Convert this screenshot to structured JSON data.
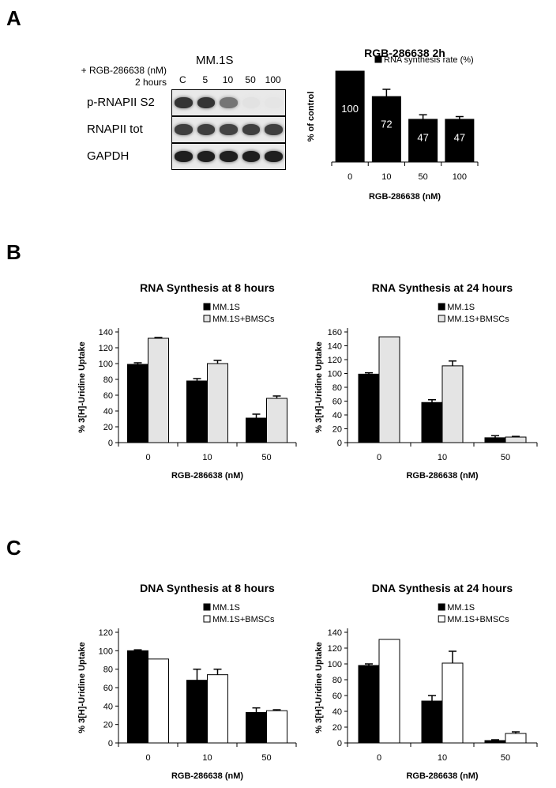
{
  "panels": {
    "a": "A",
    "b": "B",
    "c": "C"
  },
  "blot": {
    "cell_line": "MM.1S",
    "treatment_label": "+ RGB-286638 (nM)",
    "time_label": "2 hours",
    "lanes": [
      "C",
      "5",
      "10",
      "50",
      "100"
    ],
    "rows": [
      {
        "label": "p-RNAPII S2",
        "intensity": [
          0.85,
          0.85,
          0.55,
          0.04,
          0.03
        ]
      },
      {
        "label": "RNAPII tot",
        "intensity": [
          0.8,
          0.8,
          0.78,
          0.8,
          0.8
        ]
      },
      {
        "label": "GAPDH",
        "intensity": [
          0.95,
          0.95,
          0.95,
          0.95,
          0.95
        ]
      }
    ]
  },
  "colors": {
    "dark": "#000000",
    "light_gray": "#e4e4e4",
    "white": "#ffffff"
  },
  "chart_data": [
    {
      "id": "a2",
      "type": "bar",
      "title": "RGB-286638 2h",
      "xlabel": "RGB-286638 (nM)",
      "ylabel": "% of control",
      "categories": [
        "0",
        "10",
        "50",
        "100"
      ],
      "series": [
        {
          "name": "RNA synthesis rate (%)",
          "color": "#000000",
          "values": [
            100,
            72,
            47,
            47
          ],
          "errors": [
            0,
            8,
            5,
            3
          ]
        }
      ],
      "data_labels": [
        "100",
        "72",
        "47",
        "47"
      ],
      "ylim": [
        0,
        100
      ],
      "y_axis_visible": false,
      "legend": "top"
    },
    {
      "id": "b1",
      "type": "bar",
      "title": "RNA Synthesis at 8 hours",
      "xlabel": "RGB-286638 (nM)",
      "ylabel": "% 3[H]-Uridine Uptake",
      "categories": [
        "0",
        "10",
        "50"
      ],
      "series": [
        {
          "name": "MM.1S",
          "color": "#000000",
          "values": [
            99,
            78,
            31
          ],
          "errors": [
            2,
            3,
            5
          ]
        },
        {
          "name": "MM.1S+BMSCs",
          "color": "#e4e4e4",
          "values": [
            132,
            100,
            56
          ],
          "errors": [
            1,
            4,
            3
          ]
        }
      ],
      "ylim": [
        0,
        140
      ],
      "yticks": [
        "0",
        "20",
        "40",
        "60",
        "80",
        "100",
        "120",
        "140"
      ],
      "legend": "top-right"
    },
    {
      "id": "b2",
      "type": "bar",
      "title": "RNA Synthesis at 24 hours",
      "xlabel": "RGB-286638 (nM)",
      "ylabel": "% 3[H]-Uridine Uptake",
      "categories": [
        "0",
        "10",
        "50"
      ],
      "series": [
        {
          "name": "MM.1S",
          "color": "#000000",
          "values": [
            99,
            58,
            7
          ],
          "errors": [
            2,
            4,
            3
          ]
        },
        {
          "name": "MM.1S+BMSCs",
          "color": "#e4e4e4",
          "values": [
            153,
            111,
            8
          ],
          "errors": [
            0,
            7,
            1
          ]
        }
      ],
      "ylim": [
        0,
        160
      ],
      "yticks": [
        "0",
        "20",
        "40",
        "60",
        "80",
        "100",
        "120",
        "140",
        "160"
      ],
      "legend": "top-right"
    },
    {
      "id": "c1",
      "type": "bar",
      "title": "DNA Synthesis at 8 hours",
      "xlabel": "RGB-286638 (nM)",
      "ylabel": "% 3[H]-Uridine Uptake",
      "categories": [
        "0",
        "10",
        "50"
      ],
      "series": [
        {
          "name": "MM.1S",
          "color": "#000000",
          "values": [
            100,
            68,
            33
          ],
          "errors": [
            1,
            12,
            5
          ]
        },
        {
          "name": "MM.1S+BMSCs",
          "color": "#ffffff",
          "values": [
            91,
            74,
            35
          ],
          "errors": [
            0,
            6,
            1
          ]
        }
      ],
      "ylim": [
        0,
        120
      ],
      "yticks": [
        "0",
        "20",
        "40",
        "60",
        "80",
        "100",
        "120"
      ],
      "legend": "top-right"
    },
    {
      "id": "c2",
      "type": "bar",
      "title": "DNA Synthesis at 24 hours",
      "xlabel": "RGB-286638 (nM)",
      "ylabel": "% 3[H]-Uridine Uptake",
      "categories": [
        "0",
        "10",
        "50"
      ],
      "series": [
        {
          "name": "MM.1S",
          "color": "#000000",
          "values": [
            98,
            53,
            3
          ],
          "errors": [
            2,
            7,
            1
          ]
        },
        {
          "name": "MM.1S+BMSCs",
          "color": "#ffffff",
          "values": [
            131,
            101,
            12
          ],
          "errors": [
            0,
            15,
            2
          ]
        }
      ],
      "ylim": [
        0,
        140
      ],
      "yticks": [
        "0",
        "20",
        "40",
        "60",
        "80",
        "100",
        "120",
        "140"
      ],
      "legend": "top-right"
    }
  ]
}
